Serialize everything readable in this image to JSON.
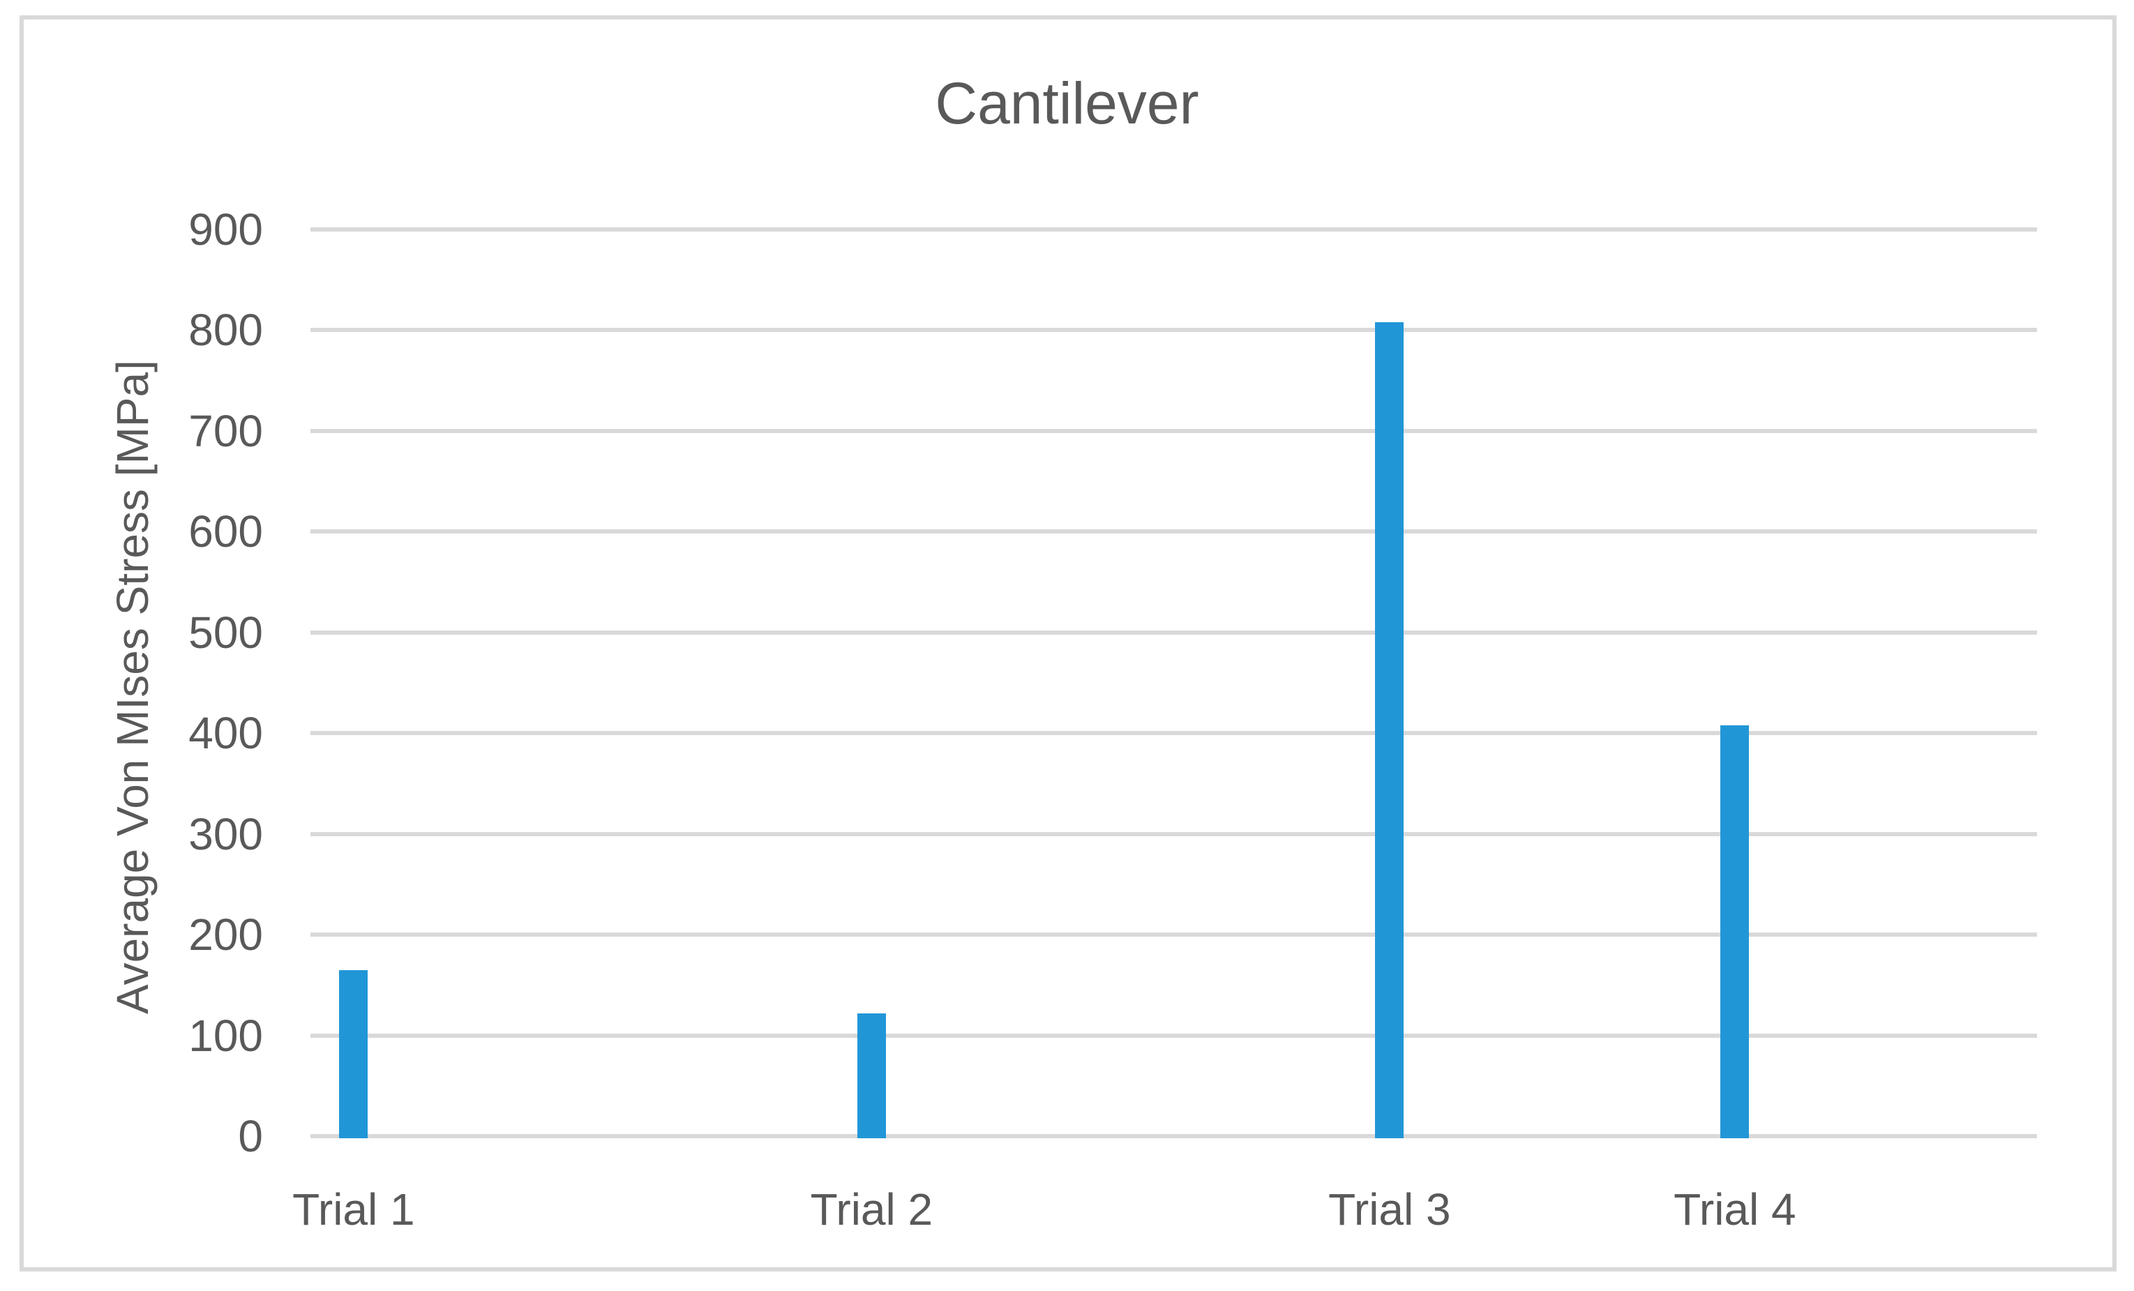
{
  "window": {
    "background_color": "#ffffff",
    "frame_border_color": "#d9d9d9"
  },
  "chart_data": {
    "type": "bar",
    "title": "Cantilever",
    "categories": [
      "Trial 1",
      "Trial 2",
      "Trial 3",
      "Trial 4"
    ],
    "values": [
      165,
      122,
      808,
      408
    ],
    "xlabel": "",
    "ylabel": "Average Von MIses Stress [MPa]",
    "ylim": [
      0,
      900
    ],
    "yticks": [
      0,
      100,
      200,
      300,
      400,
      500,
      600,
      700,
      800,
      900
    ],
    "grid": "horizontal",
    "legend": "none",
    "bar_color": "#2196d6",
    "text_color": "#595959",
    "gridline_color": "#d9d9d9",
    "bar_centers_frac": [
      0.025,
      0.325,
      0.625,
      0.825
    ]
  }
}
